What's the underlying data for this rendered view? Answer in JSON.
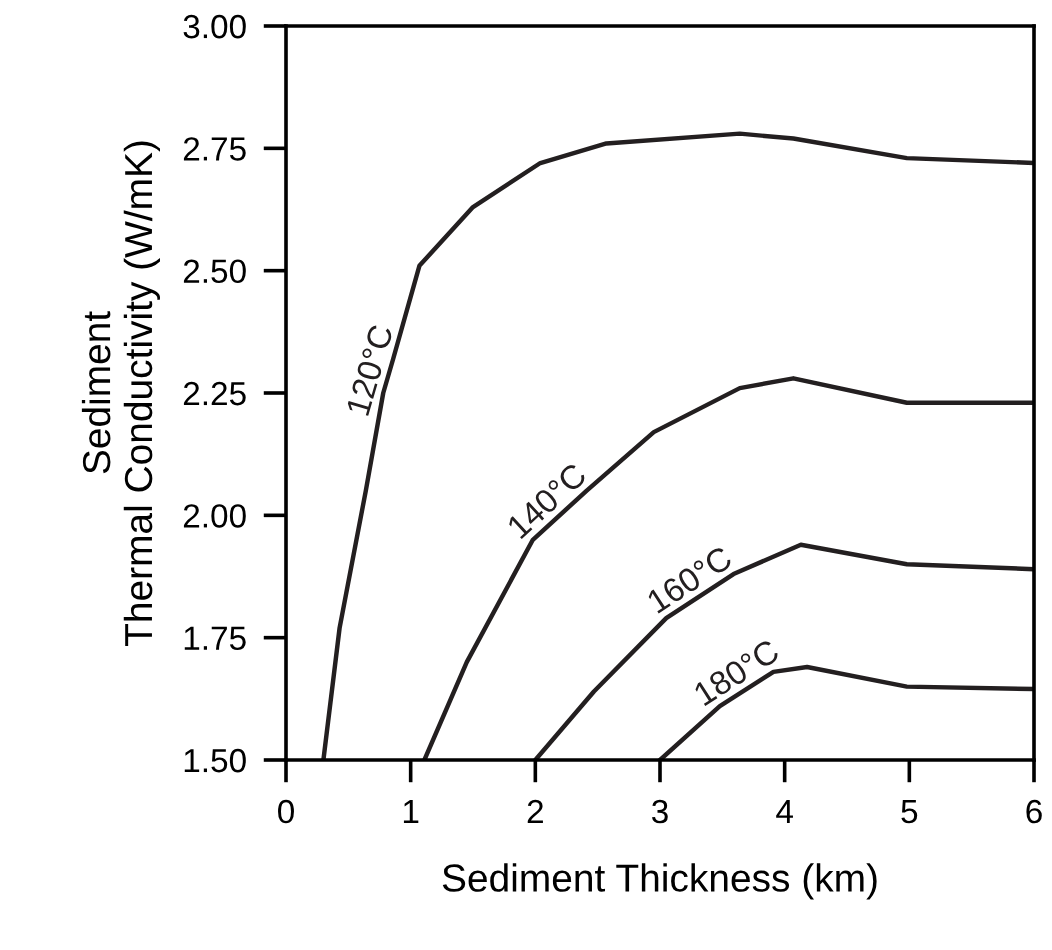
{
  "chart_data": {
    "type": "line",
    "xlabel": "Sediment Thickness (km)",
    "ylabel": "Sediment\nThermal Conductivity (W/mK)",
    "xlim": [
      0,
      6
    ],
    "xticks": [
      0,
      1,
      2,
      3,
      4,
      5,
      6
    ],
    "ylim": [
      1.5,
      3.0
    ],
    "yticks": [
      {
        "value": 1.5,
        "label": "1.50"
      },
      {
        "value": 1.75,
        "label": "1.75"
      },
      {
        "value": 2.0,
        "label": "2.00"
      },
      {
        "value": 2.25,
        "label": "2.25"
      },
      {
        "value": 2.5,
        "label": "2.50"
      },
      {
        "value": 2.75,
        "label": "2.75"
      },
      {
        "value": 3.0,
        "label": "3.00"
      }
    ],
    "grid": false,
    "legend": false,
    "marker": "none",
    "line_style": "solid",
    "series": [
      {
        "name": "120°C",
        "color": "#231f20",
        "x": [
          0.3,
          0.43,
          0.64,
          0.78,
          0.86,
          1.07,
          1.5,
          2.04,
          2.57,
          3.64,
          4.07,
          4.98,
          6.0
        ],
        "values": [
          1.5,
          1.77,
          2.05,
          2.25,
          2.32,
          2.51,
          2.63,
          2.72,
          2.76,
          2.78,
          2.77,
          2.73,
          2.72
        ]
      },
      {
        "name": "140°C",
        "color": "#231f20",
        "x": [
          1.11,
          1.45,
          1.98,
          2.41,
          2.95,
          3.64,
          4.07,
          4.98,
          6.0
        ],
        "values": [
          1.5,
          1.7,
          1.95,
          2.05,
          2.17,
          2.26,
          2.28,
          2.23,
          2.23
        ]
      },
      {
        "name": "160°C",
        "color": "#231f20",
        "x": [
          2.0,
          2.47,
          3.05,
          3.59,
          4.13,
          4.98,
          6.0
        ],
        "values": [
          1.5,
          1.64,
          1.79,
          1.88,
          1.94,
          1.9,
          1.89
        ]
      },
      {
        "name": "180°C",
        "color": "#231f20",
        "x": [
          3.0,
          3.48,
          3.91,
          4.18,
          4.98,
          6.0
        ],
        "values": [
          1.5,
          1.61,
          1.68,
          1.69,
          1.65,
          1.645
        ]
      }
    ]
  }
}
